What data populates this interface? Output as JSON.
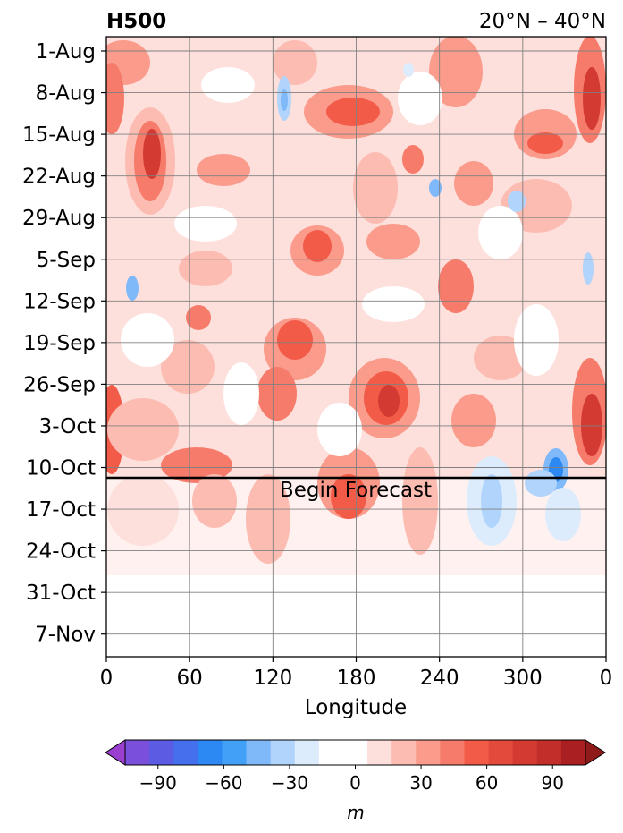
{
  "chart_data": {
    "type": "heatmap",
    "title": "H500",
    "subtitle": "20°N – 40°N",
    "xlabel": "Longitude",
    "x_ticks": [
      "0",
      "60",
      "120",
      "180",
      "240",
      "300",
      "0"
    ],
    "y_ticks": [
      "1-Aug",
      "8-Aug",
      "15-Aug",
      "22-Aug",
      "29-Aug",
      "5-Sep",
      "12-Sep",
      "19-Sep",
      "26-Sep",
      "3-Oct",
      "10-Oct",
      "17-Oct",
      "24-Oct",
      "31-Oct",
      "7-Nov"
    ],
    "annotation": "Begin Forecast",
    "forecast_start": "13-Oct",
    "colorbar": {
      "label": "m",
      "ticks": [
        "−90",
        "−60",
        "−30",
        "0",
        "30",
        "60",
        "90"
      ],
      "levels": [
        -105,
        -95,
        -85,
        -75,
        -65,
        -55,
        -45,
        -35,
        -25,
        -15,
        -5,
        5,
        15,
        25,
        35,
        45,
        55,
        65,
        75,
        85,
        95,
        105
      ],
      "colors": [
        "#9a3fd0",
        "#7a4fdc",
        "#5c5be4",
        "#4470ee",
        "#2c88f2",
        "#42a0f7",
        "#7fb9f9",
        "#b0d4fb",
        "#dcecfd",
        "#ffffff",
        "#ffffff",
        "#fde0dc",
        "#fcbcb2",
        "#fa9b8c",
        "#f77b6a",
        "#f35b49",
        "#e44a3b",
        "#d33a31",
        "#c22f2a",
        "#a91f22",
        "#8f1a1a"
      ]
    },
    "features": [
      {
        "lon": 30,
        "date": "15-Aug",
        "value": 60
      },
      {
        "lon": 150,
        "date": "5-Sep",
        "value": 55
      },
      {
        "lon": 180,
        "date": "10-Aug",
        "value": 50
      },
      {
        "lon": 200,
        "date": "1-Oct",
        "value": 70
      },
      {
        "lon": 100,
        "date": "10-Aug",
        "value": -30
      },
      {
        "lon": 240,
        "date": "25-Aug",
        "value": -30
      },
      {
        "lon": 290,
        "date": "26-Aug",
        "value": -25
      },
      {
        "lon": 10,
        "date": "13-Sep",
        "value": -35
      },
      {
        "lon": 330,
        "date": "13-Oct",
        "value": -65
      },
      {
        "lon": 280,
        "date": "16-Oct",
        "value": -30
      },
      {
        "lon": 350,
        "date": "5-Oct",
        "value": 75
      },
      {
        "lon": 170,
        "date": "16-Oct",
        "value": 50
      }
    ]
  }
}
